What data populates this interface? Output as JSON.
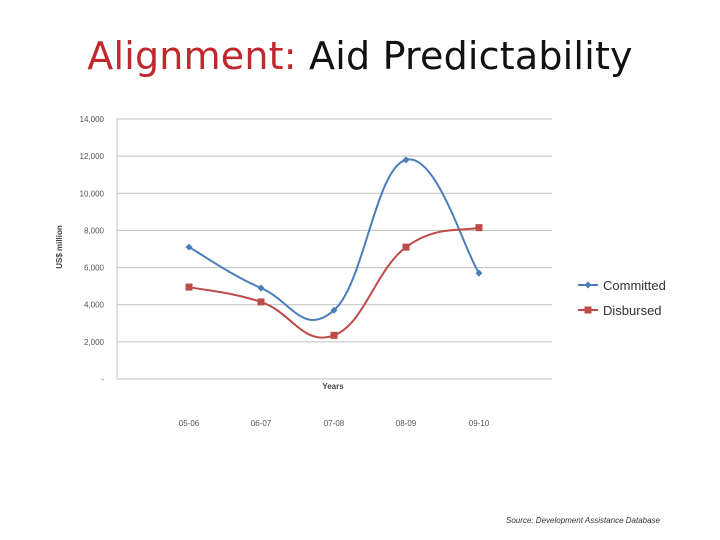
{
  "slide": {
    "title_prefix": "Alignment:",
    "title_rest": " Aid Predictability",
    "source": "Source: Development Assistance Database"
  },
  "colors": {
    "title_accent": "#c0282d",
    "committed": "#4a7ebb",
    "disbursed": "#be4b48",
    "grid": "#bfbfbf"
  },
  "chart_data": {
    "type": "line",
    "title": "",
    "xlabel": "Years",
    "ylabel": "US$ million",
    "categories": [
      "05-06",
      "06-07",
      "07-08",
      "08-09",
      "09-10"
    ],
    "ylim": [
      0,
      14000
    ],
    "yticks": [
      0,
      2000,
      4000,
      6000,
      8000,
      10000,
      12000,
      14000
    ],
    "ytick_labels": [
      "-",
      "2,000",
      "4,000",
      "6,000",
      "8,000",
      "10,000",
      "12,000",
      "14,000"
    ],
    "grid": true,
    "smooth": true,
    "legend_position": "right",
    "series": [
      {
        "name": "Committed",
        "values": [
          7100,
          4900,
          3700,
          11800,
          5700
        ],
        "color": "#4a7ebb",
        "marker": "diamond"
      },
      {
        "name": "Disbursed",
        "values": [
          4950,
          4150,
          2350,
          7100,
          8150
        ],
        "color": "#be4b48",
        "marker": "square"
      }
    ]
  }
}
